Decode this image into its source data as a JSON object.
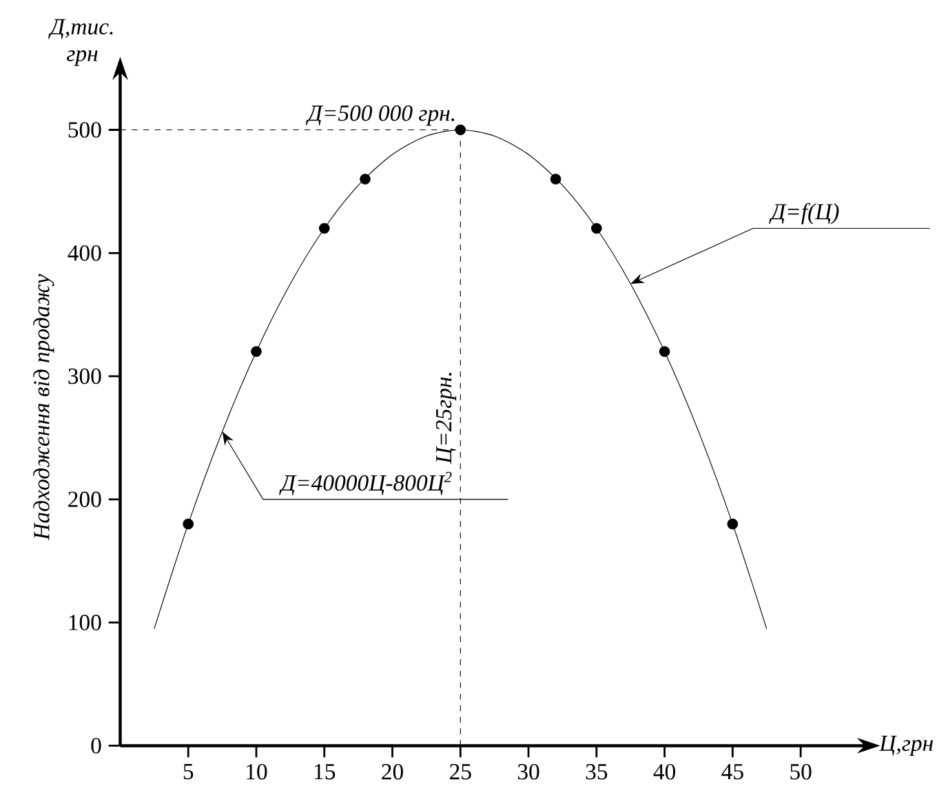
{
  "chart_data": {
    "type": "scatter",
    "ylabel": "Надходження від продажу",
    "xlabel": "Ц,грн",
    "grid": false,
    "xlim": [
      0,
      55
    ],
    "ylim": [
      0,
      550
    ],
    "xticks": [
      5,
      10,
      15,
      20,
      25,
      30,
      35,
      40,
      45,
      50
    ],
    "yticks": [
      0,
      100,
      200,
      300,
      400,
      500
    ],
    "series": [
      {
        "type": "line",
        "marker": "none",
        "color": "#000000",
        "x": [
          2.5,
          5,
          7.5,
          10,
          12.5,
          15,
          17.5,
          20,
          22.5,
          25,
          27.5,
          30,
          32.5,
          35,
          37.5,
          40,
          42.5,
          45,
          47.5
        ],
        "values": [
          95,
          180,
          255,
          320,
          375,
          420,
          455,
          480,
          495,
          500,
          495,
          480,
          455,
          420,
          375,
          320,
          255,
          180,
          95
        ]
      },
      {
        "color": "#000000",
        "marker": "circle",
        "x": [
          5,
          10,
          15,
          18,
          25,
          32,
          35,
          40,
          45
        ],
        "values": [
          180,
          320,
          420,
          460,
          500,
          460,
          420,
          320,
          180
        ]
      }
    ],
    "ref_lines": [
      {
        "axis": "y",
        "value": 500,
        "label": "Д=500 000 грн.",
        "line_style": "dashed"
      },
      {
        "axis": "x",
        "value": 25,
        "label": "Ц=25грн.",
        "line_style": "dashed"
      }
    ],
    "annotations": [
      "Д,тис. грн",
      {
        "text": "Д=f(Ц)",
        "x": 37.5,
        "y": 375
      },
      {
        "text": "Д=40000Ц-800Ц$^{2}$",
        "x": 7.5,
        "y": 255
      }
    ]
  }
}
